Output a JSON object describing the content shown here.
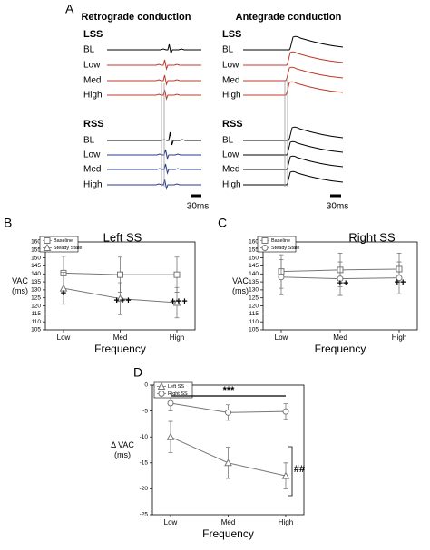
{
  "panel_a": {
    "label": "A",
    "left_title": "Retrograde conduction",
    "right_title": "Antegrade conduction",
    "left_lss": "LSS",
    "left_lss_rows": [
      "BL",
      "Low",
      "Med",
      "High"
    ],
    "left_rss": "RSS",
    "left_rss_rows": [
      "BL",
      "Low",
      "Med",
      "High"
    ],
    "right_lss": "LSS",
    "right_lss_rows": [
      "BL",
      "Low",
      "Med",
      "High"
    ],
    "right_rss": "RSS",
    "right_rss_rows": [
      "BL",
      "Low",
      "Med",
      "High"
    ],
    "scale_labels": [
      "30ms",
      "30ms"
    ]
  },
  "chart_data": [
    {
      "type": "line",
      "panel": "B",
      "title": "Left SS",
      "categories": [
        "Low",
        "Med",
        "High"
      ],
      "xlabel": "Frequency",
      "ylabel": [
        "VAC",
        "(ms)"
      ],
      "ylim": [
        105,
        160
      ],
      "yticks": [
        105,
        110,
        115,
        120,
        125,
        130,
        135,
        140,
        145,
        150,
        155,
        160
      ],
      "legend": "upper left",
      "series": [
        {
          "name": "Baseline",
          "color": "#777777",
          "marker": "square",
          "values": [
            140.5,
            139.5,
            139.5
          ],
          "errors": [
            10.5,
            11,
            11
          ]
        },
        {
          "name": "Steady State",
          "color": "#777777",
          "marker": "triangle",
          "values": [
            131,
            124.5,
            122
          ],
          "errors": [
            10,
            10,
            9.5
          ]
        }
      ],
      "annotations": [
        "+",
        "+++",
        "+++"
      ]
    },
    {
      "type": "line",
      "panel": "C",
      "title": "Right SS",
      "categories": [
        "Low",
        "Med",
        "High"
      ],
      "xlabel": "Frequency",
      "ylabel": [
        "VAC",
        "(ms)"
      ],
      "ylim": [
        105,
        160
      ],
      "yticks": [
        105,
        110,
        115,
        120,
        125,
        130,
        135,
        140,
        145,
        150,
        155,
        160
      ],
      "legend": "upper left",
      "series": [
        {
          "name": "Baseline",
          "color": "#777777",
          "marker": "square",
          "values": [
            141.5,
            142.5,
            143
          ],
          "errors": [
            10.5,
            10.5,
            10
          ]
        },
        {
          "name": "Steady State",
          "color": "#777777",
          "marker": "circle",
          "values": [
            138,
            137,
            137.5
          ],
          "errors": [
            11,
            10.5,
            10
          ]
        }
      ],
      "annotations": [
        "++",
        "++"
      ]
    },
    {
      "type": "line",
      "panel": "D",
      "categories": [
        "Low",
        "Med",
        "High"
      ],
      "xlabel": "Frequency",
      "ylabel": [
        "Δ VAC",
        "(ms)"
      ],
      "ylim": [
        -25,
        0
      ],
      "yticks": [
        -25,
        -20,
        -15,
        -10,
        -5,
        0
      ],
      "legend": "upper left",
      "series": [
        {
          "name": "Left SS",
          "color": "#777777",
          "marker": "triangle",
          "values": [
            -10,
            -15,
            -17.5
          ],
          "errors": [
            3,
            3,
            2.5
          ]
        },
        {
          "name": "Right SS",
          "color": "#777777",
          "marker": "circle",
          "values": [
            -3.5,
            -5.3,
            -5.1
          ],
          "errors": [
            1.5,
            1.5,
            1.5
          ]
        }
      ],
      "annotations": [
        "***",
        "##"
      ]
    }
  ]
}
